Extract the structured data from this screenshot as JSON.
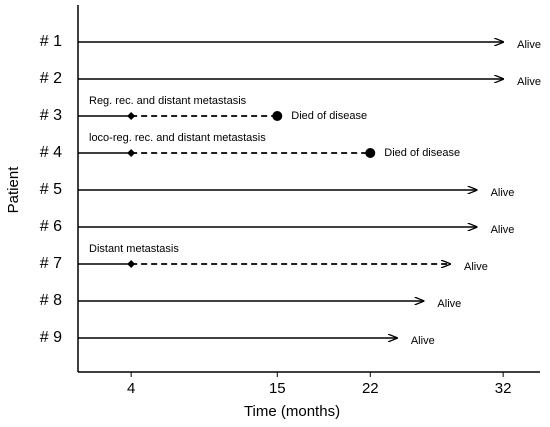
{
  "chart_data": {
    "type": "swimmer",
    "y_label": "Patient",
    "x_label": "Time (months)",
    "categories": [
      "# 1",
      "# 2",
      "# 3",
      "# 4",
      "# 5",
      "# 6",
      "# 7",
      "# 8",
      "# 9"
    ],
    "event": [
      null,
      null,
      4,
      4,
      null,
      null,
      4,
      null,
      null
    ],
    "end": [
      32,
      32,
      15,
      22,
      30,
      30,
      28,
      26,
      24
    ],
    "end_marker": [
      "arrow",
      "arrow",
      "dot",
      "dot",
      "arrow",
      "arrow",
      "arrow",
      "arrow",
      "arrow"
    ],
    "event_labels": [
      null,
      null,
      "Reg. rec. and distant metastasis",
      "loco-reg. rec. and distant metastasis",
      null,
      null,
      "Distant metastasis",
      null,
      null
    ],
    "outcome": [
      "Alive",
      "Alive",
      "Died of disease",
      "Died of disease",
      "Alive",
      "Alive",
      "Alive",
      "Alive",
      "Alive"
    ],
    "color": "#000000",
    "xlim": [
      0,
      35
    ],
    "xticks": [
      4,
      15,
      22,
      32
    ]
  }
}
